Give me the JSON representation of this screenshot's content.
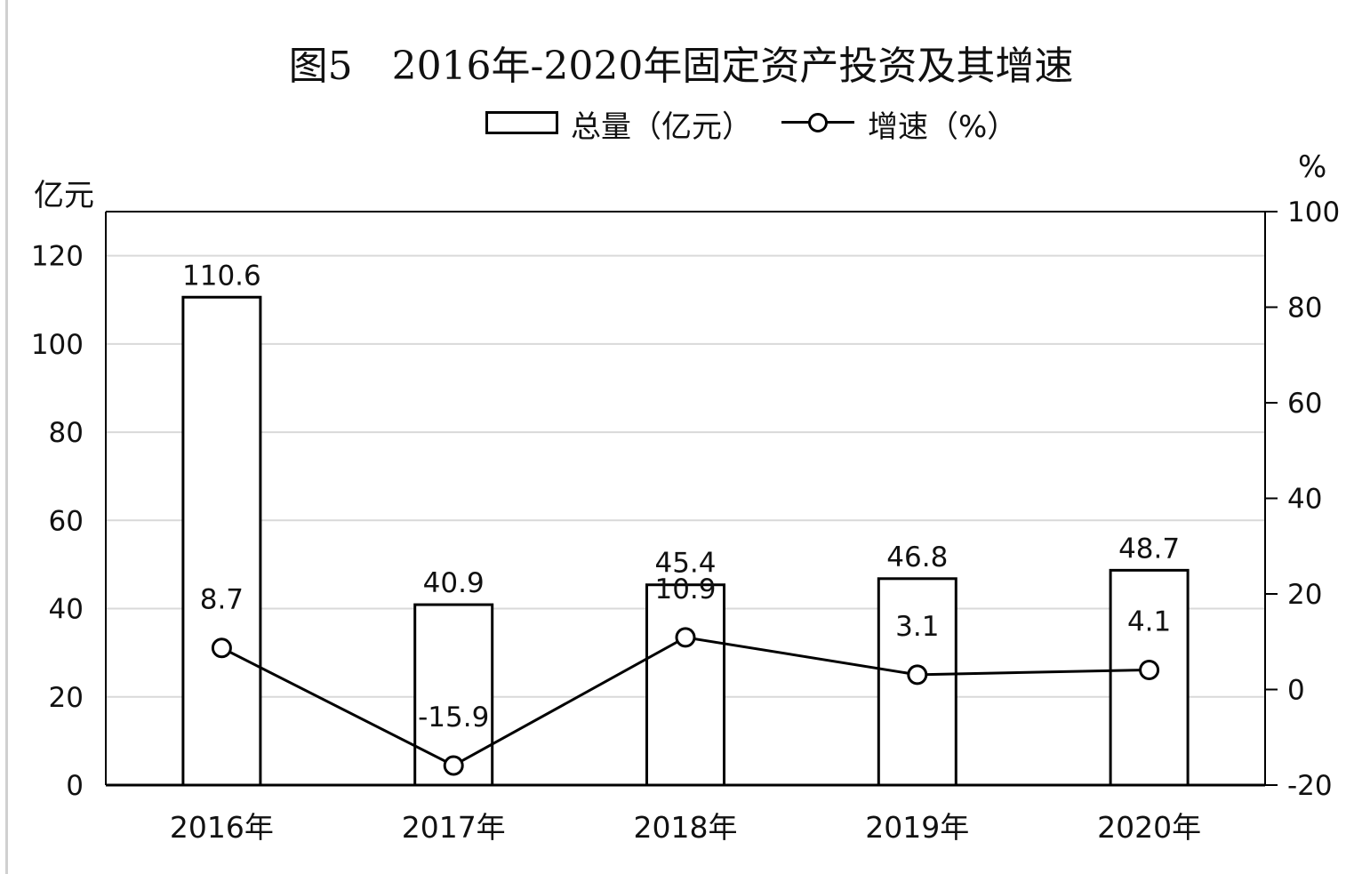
{
  "title": "图5　2016年-2020年固定资产投资及其增速",
  "legend": {
    "bar_label": "总量（亿元）",
    "line_label": "增速（%）"
  },
  "left_unit": "亿元",
  "right_unit": "%",
  "colors": {
    "bar_fill": "#ffffff",
    "bar_stroke": "#000000",
    "line": "#000000",
    "grid": "#d9d9d9"
  },
  "chart_data": {
    "type": "bar",
    "categories": [
      "2016年",
      "2017年",
      "2018年",
      "2019年",
      "2020年"
    ],
    "series": [
      {
        "name": "总量（亿元）",
        "type": "bar",
        "axis": "left",
        "values": [
          110.6,
          40.9,
          45.4,
          46.8,
          48.7
        ],
        "labels": [
          "110.6",
          "40.9",
          "45.4",
          "46.8",
          "48.7"
        ]
      },
      {
        "name": "增速（%）",
        "type": "line",
        "axis": "right",
        "values": [
          8.7,
          -15.9,
          10.9,
          3.1,
          4.1
        ],
        "labels": [
          "8.7",
          "-15.9",
          "10.9",
          "3.1",
          "4.1"
        ]
      }
    ],
    "left_axis": {
      "unit": "亿元",
      "ylim": [
        0,
        130
      ],
      "ticks": [
        0,
        20,
        40,
        60,
        80,
        100,
        120
      ]
    },
    "right_axis": {
      "unit": "%",
      "ylim": [
        -20,
        100
      ],
      "ticks": [
        -20,
        0,
        20,
        40,
        60,
        80,
        100
      ]
    },
    "grid": true,
    "legend_position": "top-center"
  }
}
